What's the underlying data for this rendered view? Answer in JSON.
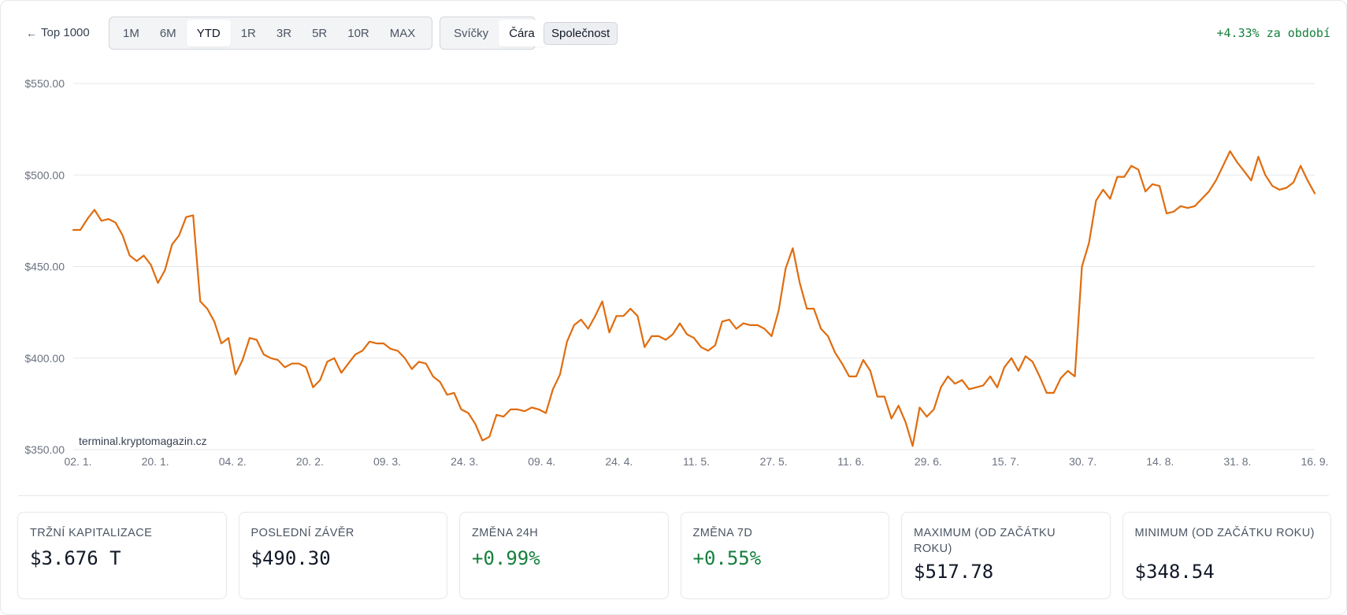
{
  "toolbar": {
    "back_label": "Top 1000",
    "ranges": [
      "1M",
      "6M",
      "YTD",
      "1R",
      "3R",
      "5R",
      "10R",
      "MAX"
    ],
    "active_range": "YTD",
    "chart_types": [
      "Svíčky",
      "Čára"
    ],
    "active_chart_type": "Čára",
    "company_label": "Společnost",
    "period_change": "+4.33% za období"
  },
  "colors": {
    "line": "#e06c0e",
    "positive": "#15803d",
    "grid": "#e5e7eb"
  },
  "chart_data": {
    "type": "line",
    "watermark": "terminal.kryptomagazin.cz",
    "ylim": [
      350,
      550
    ],
    "yticks": [
      350,
      400,
      450,
      500,
      550
    ],
    "ytick_labels": [
      "$350.00",
      "$400.00",
      "$450.00",
      "$500.00",
      "$550.00"
    ],
    "xtick_labels": [
      "02. 1.",
      "20. 1.",
      "04. 2.",
      "20. 2.",
      "09. 3.",
      "24. 3.",
      "09. 4.",
      "24. 4.",
      "11. 5.",
      "27. 5.",
      "11. 6.",
      "29. 6.",
      "15. 7.",
      "30. 7.",
      "14. 8.",
      "31. 8.",
      "16. 9."
    ],
    "grid": true,
    "series": [
      {
        "values": [
          470,
          470,
          476,
          481,
          475,
          476,
          474,
          467,
          456,
          453,
          456,
          451,
          441,
          448,
          462,
          467,
          477,
          478,
          431,
          427,
          420,
          408,
          411,
          391,
          399,
          411,
          410,
          402,
          400,
          399,
          395,
          397,
          397,
          395,
          384,
          388,
          398,
          400,
          392,
          397,
          402,
          404,
          409,
          408,
          408,
          405,
          404,
          400,
          394,
          398,
          397,
          390,
          387,
          380,
          381,
          372,
          370,
          364,
          355,
          357,
          369,
          368,
          372,
          372,
          371,
          373,
          372,
          370,
          383,
          391,
          409,
          418,
          421,
          416,
          423,
          431,
          414,
          423,
          423,
          427,
          423,
          406,
          412,
          412,
          410,
          413,
          419,
          413,
          411,
          406,
          404,
          407,
          420,
          421,
          416,
          419,
          418,
          418,
          416,
          412,
          426,
          449,
          460,
          441,
          427,
          427,
          416,
          412,
          403,
          397,
          390,
          390,
          399,
          393,
          379,
          379,
          367,
          374,
          365,
          352,
          373,
          368,
          372,
          384,
          390,
          386,
          388,
          383,
          384,
          385,
          390,
          384,
          395,
          400,
          393,
          401,
          398,
          390,
          381,
          381,
          389,
          393,
          390,
          450,
          463,
          486,
          492,
          487,
          499,
          499,
          505,
          503,
          491,
          495,
          494,
          479,
          480,
          483,
          482,
          483,
          487,
          491,
          497,
          505,
          513,
          507,
          502,
          497,
          510,
          500,
          494,
          492,
          493,
          496,
          505,
          497,
          490
        ]
      }
    ]
  },
  "stats": [
    {
      "label": "Tržní kapitalizace",
      "value": "$3.676 T"
    },
    {
      "label": "Poslední závěr",
      "value": "$490.30"
    },
    {
      "label": "Změna 24H",
      "value": "+0.99%"
    },
    {
      "label": "Změna 7D",
      "value": "+0.55%"
    },
    {
      "label": "Maximum (od začátku roku)",
      "value": "$517.78"
    },
    {
      "label": "Minimum (od začátku roku)",
      "value": "$348.54"
    }
  ]
}
